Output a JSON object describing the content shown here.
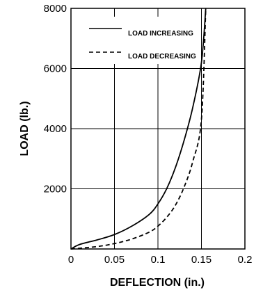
{
  "chart_data": {
    "type": "line",
    "xlabel": "DEFLECTION (in.)",
    "ylabel": "LOAD (lb.)",
    "xlim": [
      0,
      0.2
    ],
    "ylim": [
      0,
      8000
    ],
    "x_ticks": [
      0,
      0.05,
      0.1,
      0.15,
      0.2
    ],
    "x_tick_labels": [
      "0",
      "0.05",
      "0.1",
      "0.15",
      "0.2"
    ],
    "y_ticks": [
      2000,
      4000,
      6000,
      8000
    ],
    "y_tick_labels": [
      "2000",
      "4000",
      "6000",
      "8000"
    ],
    "grid": true,
    "legend_position": "top-right",
    "series": [
      {
        "name": "LOAD INCREASING",
        "line_style": "solid",
        "x": [
          0,
          0.01,
          0.03,
          0.05,
          0.07,
          0.09,
          0.1,
          0.11,
          0.12,
          0.13,
          0.14,
          0.15,
          0.155
        ],
        "y": [
          0,
          150,
          300,
          480,
          760,
          1150,
          1500,
          2000,
          2700,
          3600,
          4700,
          6200,
          8000
        ]
      },
      {
        "name": "LOAD DECREASING",
        "line_style": "dashed",
        "x": [
          0,
          0.03,
          0.05,
          0.07,
          0.09,
          0.1,
          0.11,
          0.12,
          0.13,
          0.14,
          0.15,
          0.155
        ],
        "y": [
          0,
          80,
          180,
          330,
          560,
          760,
          1050,
          1450,
          2050,
          2900,
          4300,
          8000
        ]
      }
    ]
  }
}
